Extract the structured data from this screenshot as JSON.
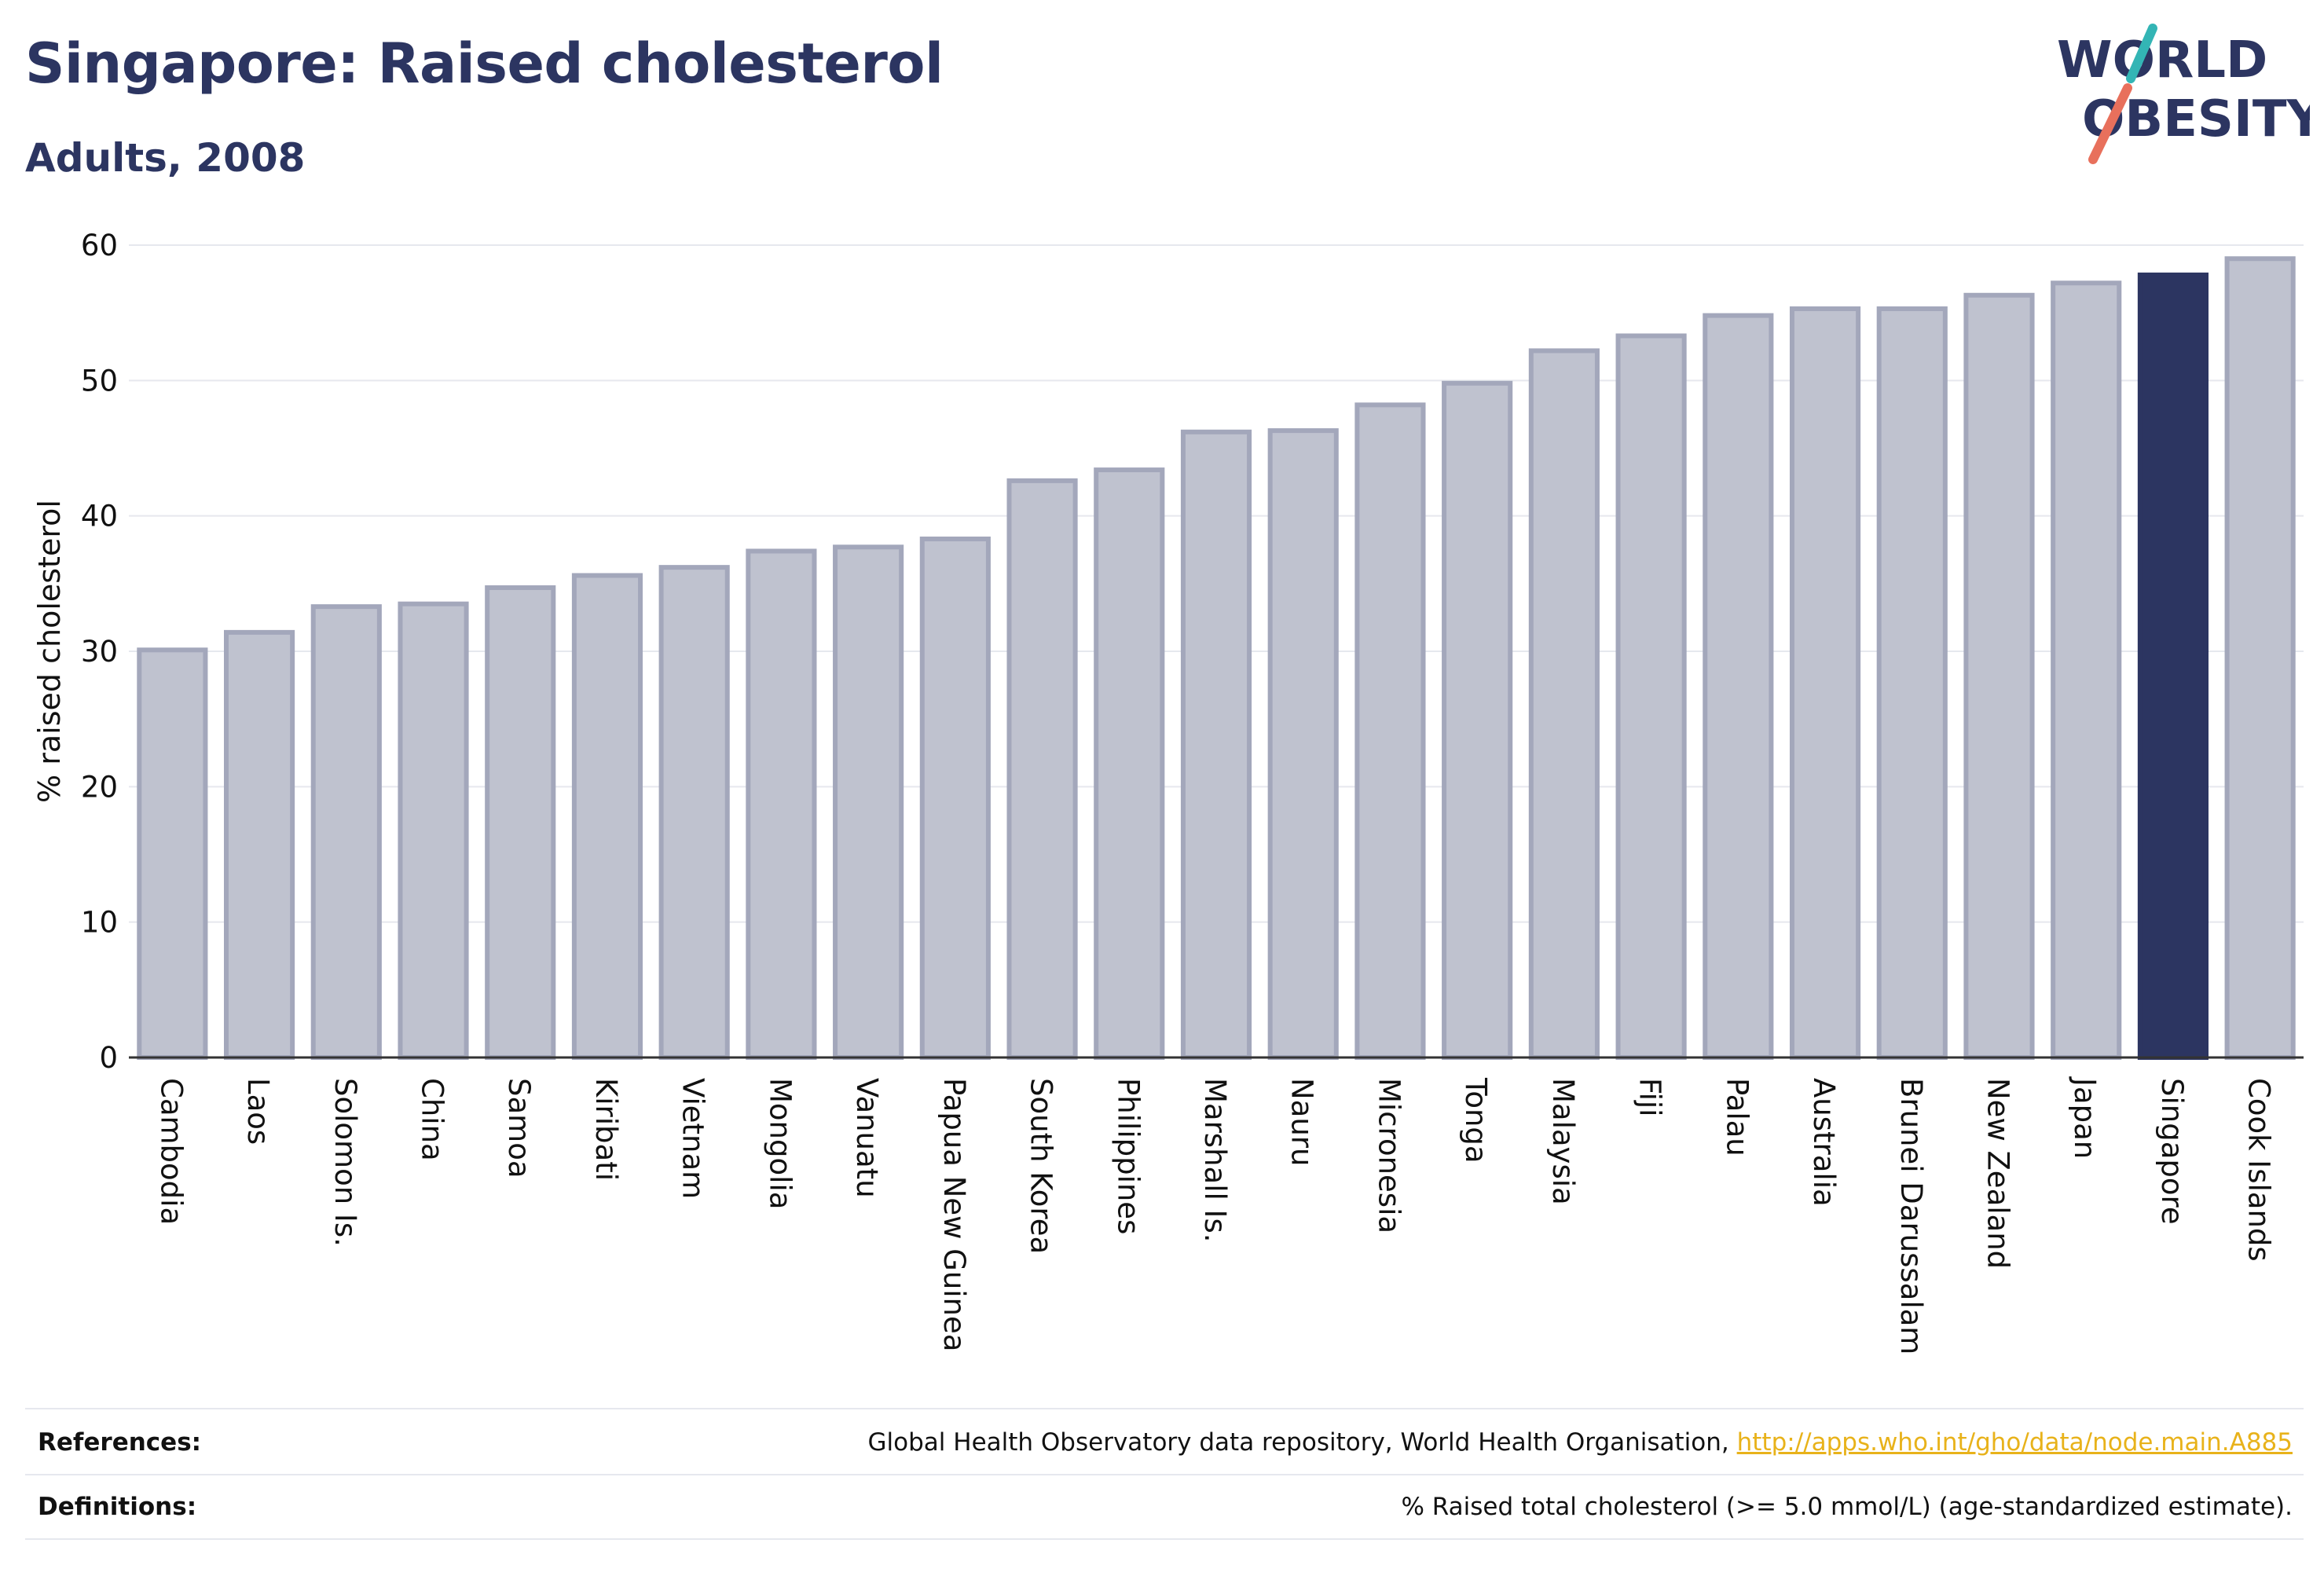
{
  "header": {
    "title": "Singapore: Raised cholesterol",
    "subtitle": "Adults, 2008"
  },
  "logo": {
    "line1": "WORLD",
    "line2": "OBESITY"
  },
  "colors": {
    "highlight": "#2c3561",
    "bar_fill": "#bfc2cf",
    "bar_stroke": "#a3a7bb",
    "logo_slash_top": "#33b5b5",
    "logo_slash_bottom": "#e8705c",
    "link": "#e8b21a"
  },
  "chart_data": {
    "type": "bar",
    "ylabel": "% raised cholesterol",
    "ylim": [
      0,
      60
    ],
    "yticks": [
      0,
      10,
      20,
      30,
      40,
      50,
      60
    ],
    "grid": true,
    "highlight": "Singapore",
    "categories": [
      "Cambodia",
      "Laos",
      "Solomon Is.",
      "China",
      "Samoa",
      "Kiribati",
      "Vietnam",
      "Mongolia",
      "Vanuatu",
      "Papua New Guinea",
      "South Korea",
      "Philippines",
      "Marshall Is.",
      "Nauru",
      "Micronesia",
      "Tonga",
      "Malaysia",
      "Fiji",
      "Palau",
      "Australia",
      "Brunei Darussalam",
      "New Zealand",
      "Japan",
      "Singapore",
      "Cook Islands"
    ],
    "values": [
      30.1,
      31.4,
      33.3,
      33.5,
      34.7,
      35.6,
      36.2,
      37.4,
      37.7,
      38.3,
      42.6,
      43.4,
      46.2,
      46.3,
      48.2,
      49.8,
      52.2,
      53.3,
      54.8,
      55.3,
      55.3,
      56.3,
      57.2,
      57.8,
      59.0
    ]
  },
  "footer": {
    "references_label": "References:",
    "references_text": "Global Health Observatory data repository, World Health Organisation, ",
    "references_link": "http://apps.who.int/gho/data/node.main.A885",
    "definitions_label": "Definitions:",
    "definitions_text": "% Raised total cholesterol (>= 5.0 mmol/L) (age-standardized estimate)."
  }
}
